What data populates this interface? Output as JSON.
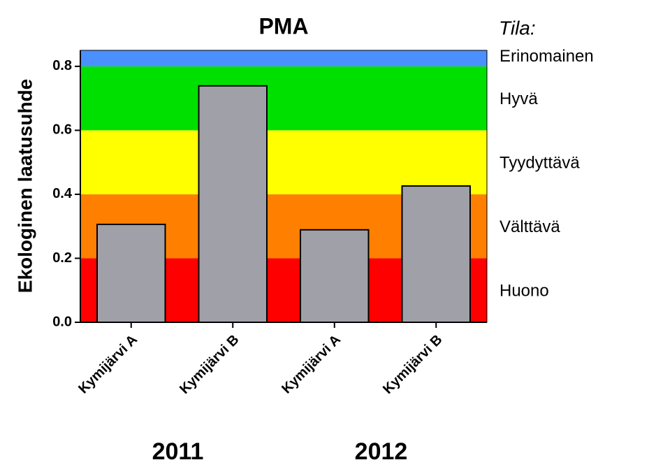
{
  "chart_data": {
    "type": "bar",
    "title": "PMA",
    "y_label": "Ekologinen laatusuhde",
    "categories": [
      "Kymijärvi A",
      "Kymijärvi B",
      "Kymijärvi A",
      "Kymijärvi B"
    ],
    "values": [
      0.306,
      0.739,
      0.289,
      0.426
    ],
    "color": "#a0a0a8",
    "group_labels": [
      "2011",
      "2012"
    ],
    "ylim": [
      0,
      0.85
    ],
    "yticks": [
      {
        "value": 0,
        "label": "0.0"
      },
      0.2,
      0.4,
      0.6,
      0.8
    ],
    "legend_title": "Tila:",
    "bands": [
      {
        "name": "Huono",
        "from": 0,
        "to": 0.2,
        "color": "#ff0000"
      },
      {
        "name": "Välttävä",
        "from": 0.2,
        "to": 0.4,
        "color": "#ff8000"
      },
      {
        "name": "Tyydyttävä",
        "from": 0.4,
        "to": 0.6,
        "color": "#ffff00"
      },
      {
        "name": "Hyvä",
        "from": 0.6,
        "to": 0.8,
        "color": "#00e000"
      },
      {
        "name": "Erinomainen",
        "from": 0.8,
        "to": 0.85,
        "color": "#4a90ff"
      }
    ]
  }
}
